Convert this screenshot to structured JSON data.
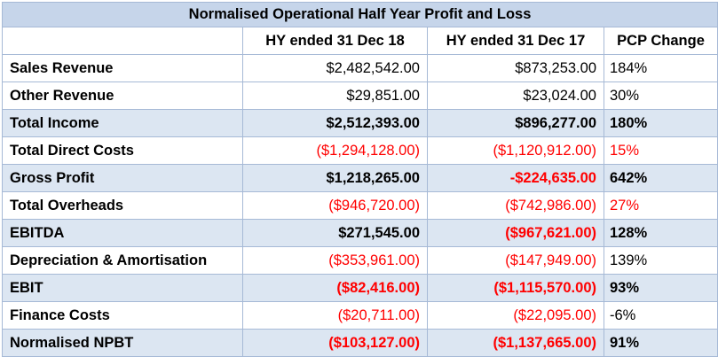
{
  "title": "Normalised Operational Half Year Profit and Loss",
  "columns": [
    "",
    "HY ended 31 Dec 18",
    "HY ended 31 Dec 17",
    "PCP Change"
  ],
  "rows": [
    {
      "label": "Sales Revenue",
      "hy18": "$2,482,542.00",
      "hy17": "$873,253.00",
      "pcp": "184%"
    },
    {
      "label": "Other Revenue",
      "hy18": "$29,851.00",
      "hy17": "$23,024.00",
      "pcp": "30%"
    },
    {
      "label": "Total Income",
      "hy18": "$2,512,393.00",
      "hy17": "$896,277.00",
      "pcp": "180%"
    },
    {
      "label": "Total Direct Costs",
      "hy18": "($1,294,128.00)",
      "hy17": "($1,120,912.00)",
      "pcp": "15%"
    },
    {
      "label": "Gross Profit",
      "hy18": "$1,218,265.00",
      "hy17": "-$224,635.00",
      "pcp": "642%"
    },
    {
      "label": "Total Overheads",
      "hy18": "($946,720.00)",
      "hy17": "($742,986.00)",
      "pcp": "27%"
    },
    {
      "label": "EBITDA",
      "hy18": "$271,545.00",
      "hy17": "($967,621.00)",
      "pcp": "128%"
    },
    {
      "label": "Depreciation & Amortisation",
      "hy18": "($353,961.00)",
      "hy17": "($147,949.00)",
      "pcp": "139%"
    },
    {
      "label": "EBIT",
      "hy18": "($82,416.00)",
      "hy17": "($1,115,570.00)",
      "pcp": "93%"
    },
    {
      "label": "Finance Costs",
      "hy18": "($20,711.00)",
      "hy17": "($22,095.00)",
      "pcp": "-6%"
    },
    {
      "label": "Normalised NPBT",
      "hy18": "($103,127.00)",
      "hy17": "($1,137,665.00)",
      "pcp": "91%"
    }
  ],
  "colors": {
    "title_bg": "#c6d5ea",
    "shade_bg": "#dce6f2",
    "border": "#a6b9d6",
    "negative": "#ff0000"
  }
}
